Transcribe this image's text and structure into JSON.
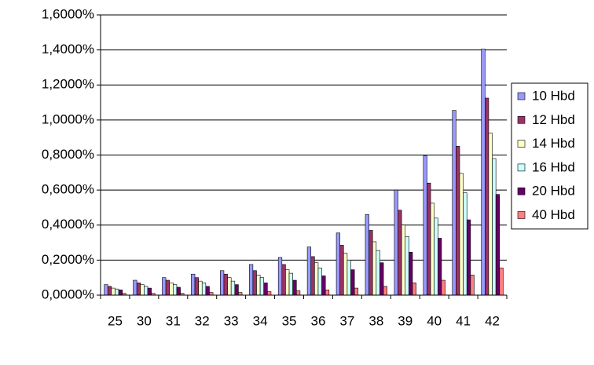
{
  "chart_data": {
    "type": "bar",
    "categories": [
      "25",
      "30",
      "31",
      "32",
      "33",
      "34",
      "35",
      "36",
      "37",
      "38",
      "39",
      "40",
      "41",
      "42"
    ],
    "series": [
      {
        "name": "10 Hbd",
        "color": "#9999ff",
        "values": [
          0.06,
          0.085,
          0.1,
          0.12,
          0.14,
          0.175,
          0.215,
          0.275,
          0.355,
          0.46,
          0.6,
          0.795,
          1.055,
          1.405
        ]
      },
      {
        "name": "12 Hbd",
        "color": "#993366",
        "values": [
          0.05,
          0.07,
          0.085,
          0.1,
          0.12,
          0.14,
          0.175,
          0.22,
          0.285,
          0.37,
          0.485,
          0.64,
          0.85,
          1.125
        ]
      },
      {
        "name": "14 Hbd",
        "color": "#ffffcc",
        "values": [
          0.04,
          0.06,
          0.07,
          0.08,
          0.1,
          0.115,
          0.145,
          0.185,
          0.24,
          0.305,
          0.4,
          0.525,
          0.695,
          0.925
        ]
      },
      {
        "name": "16 Hbd",
        "color": "#ccffff",
        "values": [
          0.035,
          0.05,
          0.06,
          0.07,
          0.08,
          0.1,
          0.125,
          0.155,
          0.2,
          0.255,
          0.335,
          0.44,
          0.585,
          0.78
        ]
      },
      {
        "name": "20 Hbd",
        "color": "#660066",
        "values": [
          0.03,
          0.04,
          0.045,
          0.05,
          0.06,
          0.07,
          0.085,
          0.11,
          0.145,
          0.185,
          0.245,
          0.325,
          0.43,
          0.575
        ]
      },
      {
        "name": "40 Hbd",
        "color": "#ff8080",
        "values": [
          0.01,
          0.01,
          0.01,
          0.015,
          0.015,
          0.02,
          0.025,
          0.03,
          0.04,
          0.05,
          0.07,
          0.085,
          0.115,
          0.155
        ]
      }
    ],
    "ylim": [
      0,
      1.6
    ],
    "yticks": [
      {
        "value": 0,
        "label": "0,0000%"
      },
      {
        "value": 0.2,
        "label": "0,2000%"
      },
      {
        "value": 0.4,
        "label": "0,4000%"
      },
      {
        "value": 0.6,
        "label": "0,6000%"
      },
      {
        "value": 0.8,
        "label": "0,8000%"
      },
      {
        "value": 1.0,
        "label": "1,0000%"
      },
      {
        "value": 1.2,
        "label": "1,2000%"
      },
      {
        "value": 1.4,
        "label": "1,4000%"
      },
      {
        "value": 1.6,
        "label": "1,6000%"
      }
    ],
    "grid": true,
    "legend": "right"
  }
}
